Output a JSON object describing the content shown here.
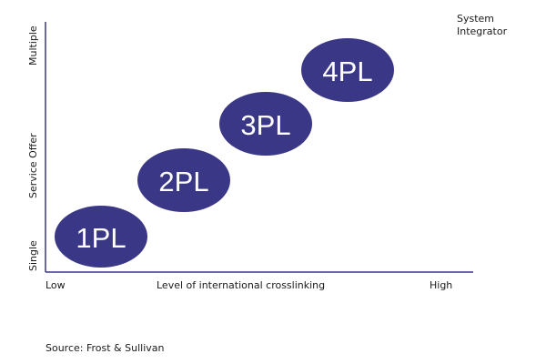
{
  "corner_label": {
    "line1": "System",
    "line2": "Integrator"
  },
  "y_axis": {
    "label": "Service Offer",
    "low": "Single",
    "high": "Multiple"
  },
  "x_axis": {
    "label": "Level of international crosslinking",
    "low": "Low",
    "high": "High"
  },
  "stages": [
    {
      "label": "1PL"
    },
    {
      "label": "2PL"
    },
    {
      "label": "3PL"
    },
    {
      "label": "4PL"
    }
  ],
  "source": "Source: Frost & Sullivan",
  "colors": {
    "ellipse_fill": "#3b3787",
    "ellipse_text": "#ffffff",
    "axis": "#3b3787"
  }
}
